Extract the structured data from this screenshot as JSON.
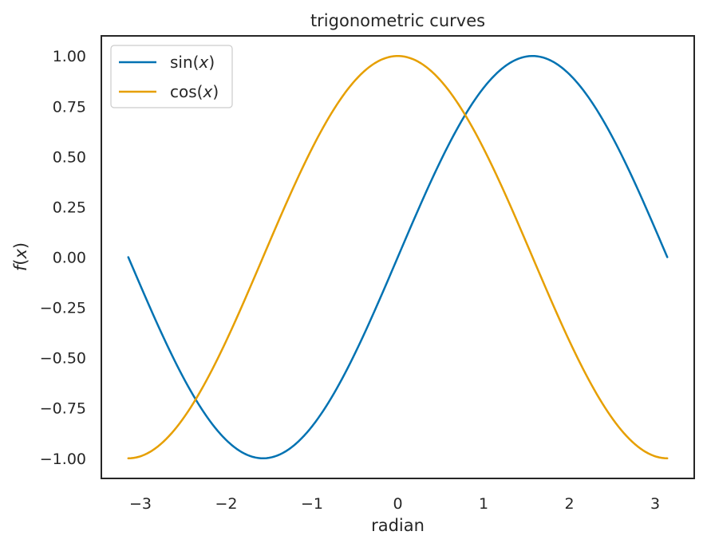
{
  "chart_data": {
    "type": "line",
    "title": "trigonometric curves",
    "xlabel": "radian",
    "ylabel": {
      "func": "f",
      "open": "(",
      "var": "x",
      "close": ")"
    },
    "xlim": [
      -3.455751918948773,
      3.455751918948773
    ],
    "ylim": [
      -1.1,
      1.1
    ],
    "xticks": [
      -3,
      -2,
      -1,
      0,
      1,
      2,
      3
    ],
    "xtick_labels": [
      "−3",
      "−2",
      "−1",
      "0",
      "1",
      "2",
      "3"
    ],
    "yticks": [
      -1.0,
      -0.75,
      -0.5,
      -0.25,
      0.0,
      0.25,
      0.5,
      0.75,
      1.0
    ],
    "ytick_labels": [
      "−1.00",
      "−0.75",
      "−0.50",
      "−0.25",
      "0.00",
      "0.25",
      "0.50",
      "0.75",
      "1.00"
    ],
    "grid": false,
    "legend_position": "upper-left",
    "x_domain": [
      -3.141592653589793,
      3.141592653589793
    ],
    "series": [
      {
        "name": "sin(x)",
        "label_func": "sin(",
        "label_var": "x",
        "label_close": ")",
        "function": "sin",
        "color": "#0072B2"
      },
      {
        "name": "cos(x)",
        "label_func": "cos(",
        "label_var": "x",
        "label_close": ")",
        "function": "cos",
        "color": "#E69F00"
      }
    ]
  }
}
